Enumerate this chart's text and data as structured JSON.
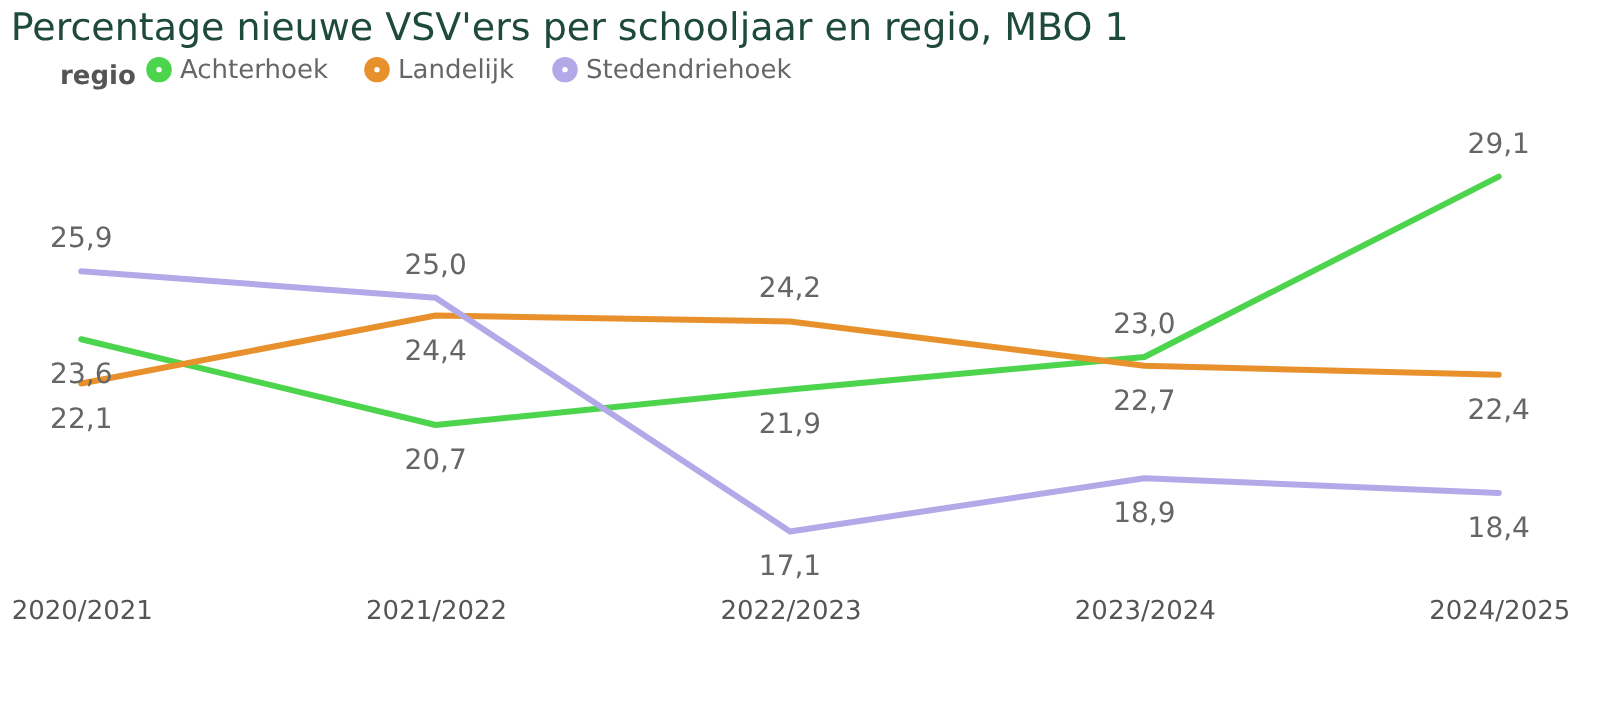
{
  "chart_data": {
    "type": "line",
    "title": "Percentage nieuwe VSV'ers per schooljaar en regio, MBO 1",
    "legend_title": "regio",
    "categories": [
      "2020/2021",
      "2021/2022",
      "2022/2023",
      "2023/2024",
      "2024/2025"
    ],
    "series": [
      {
        "name": "Achterhoek",
        "color": "#4dd44d",
        "values": [
          23.6,
          20.7,
          21.9,
          23.0,
          29.1
        ],
        "value_labels": [
          "23,6",
          "20,7",
          "21,9",
          "23,0",
          "29,1"
        ]
      },
      {
        "name": "Landelijk",
        "color": "#e8912c",
        "values": [
          22.1,
          24.4,
          24.2,
          22.7,
          22.4
        ],
        "value_labels": [
          "22,1",
          "24,4",
          "24,2",
          "22,7",
          "22,4"
        ]
      },
      {
        "name": "Stedendriehoek",
        "color": "#b3a9e8",
        "values": [
          25.9,
          25.0,
          17.1,
          18.9,
          18.4
        ],
        "value_labels": [
          "25,9",
          "25,0",
          "17,1",
          "18,9",
          "18,4"
        ]
      }
    ],
    "legend": "top left",
    "marker": "none",
    "line_style": "solid"
  }
}
